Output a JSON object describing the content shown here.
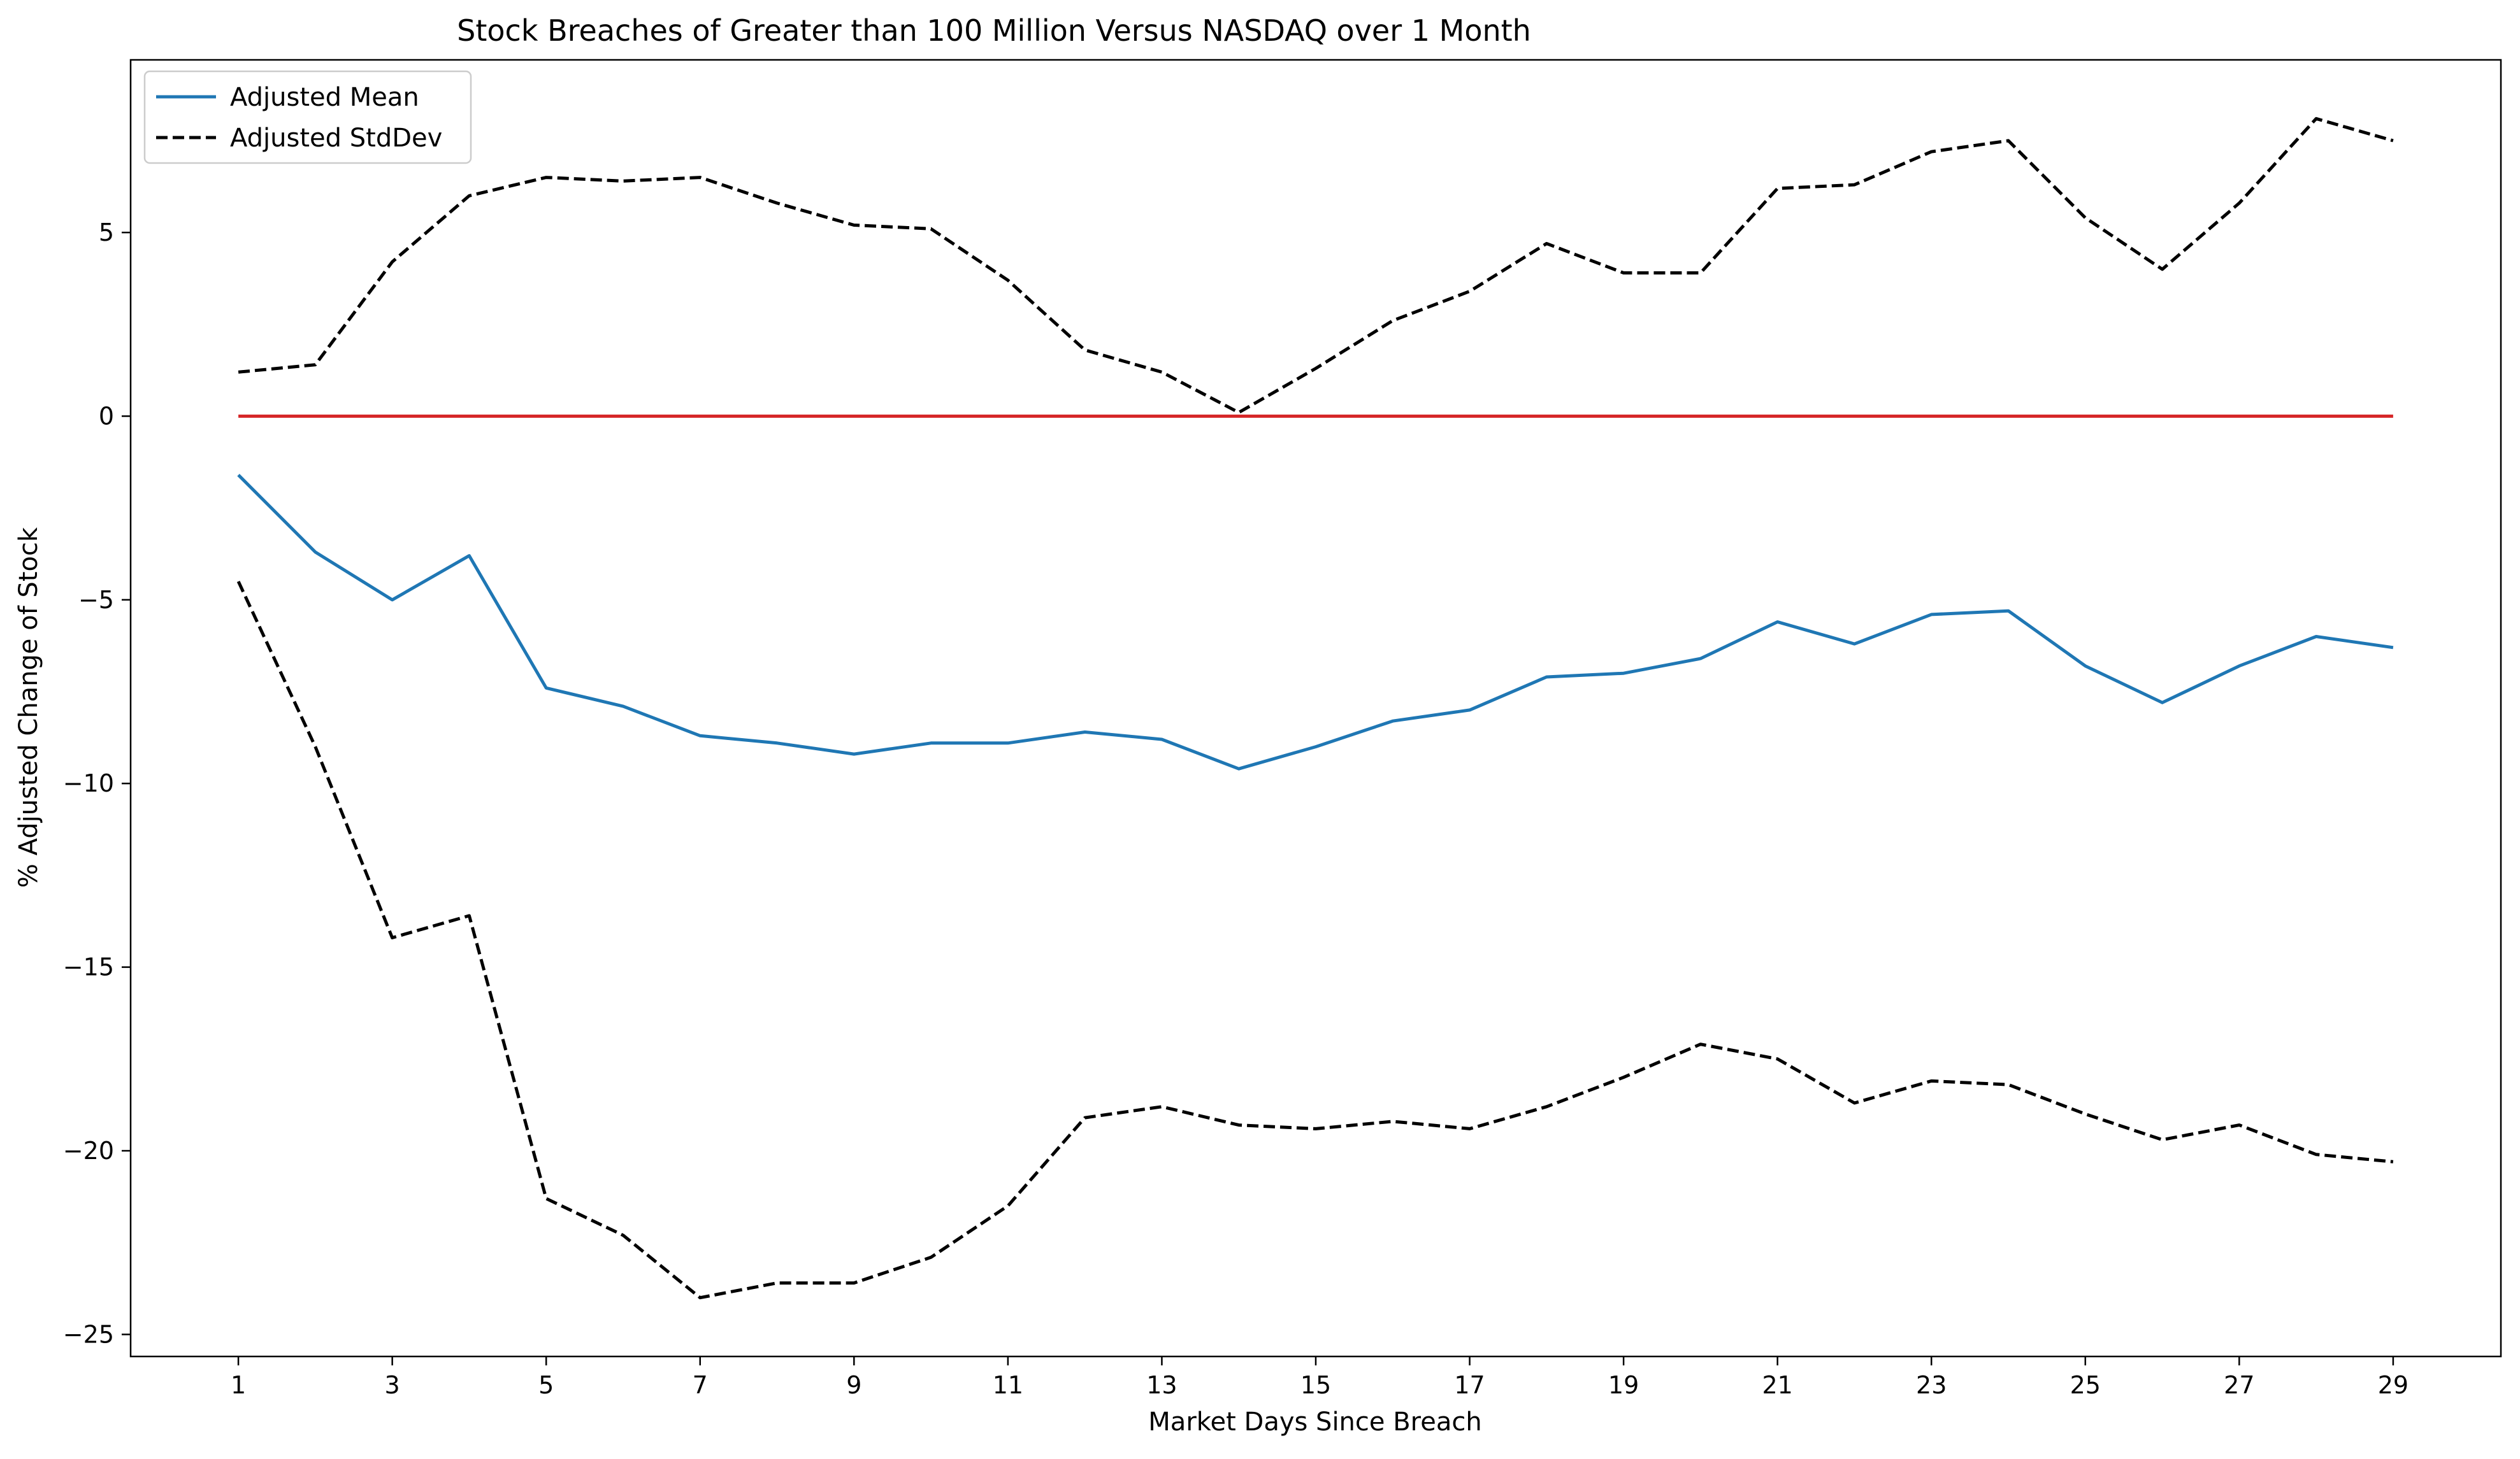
{
  "chart_data": {
    "type": "line",
    "title": "Stock Breaches of Greater than 100 Million Versus NASDAQ over 1 Month",
    "xlabel": "Market Days Since Breach",
    "ylabel": "% Adjusted Change of Stock",
    "x": [
      1,
      2,
      3,
      4,
      5,
      6,
      7,
      8,
      9,
      10,
      11,
      12,
      13,
      14,
      15,
      16,
      17,
      18,
      19,
      20,
      21,
      22,
      23,
      24,
      25,
      26,
      27,
      28,
      29
    ],
    "xticks": [
      1,
      3,
      5,
      7,
      9,
      11,
      13,
      15,
      17,
      19,
      21,
      23,
      25,
      27,
      29
    ],
    "yticks": [
      -25,
      -20,
      -15,
      -10,
      -5,
      0,
      5
    ],
    "xlim": [
      -0.4,
      30.4
    ],
    "ylim": [
      -25.6,
      9.7
    ],
    "grid": false,
    "legend_position": "top-left",
    "series": [
      {
        "name": "Adjusted Mean",
        "color": "#1f77b4",
        "style": "solid",
        "in_legend": true,
        "values": [
          -1.6,
          -3.7,
          -5.0,
          -3.8,
          -7.4,
          -7.9,
          -8.7,
          -8.9,
          -9.2,
          -8.9,
          -8.9,
          -8.6,
          -8.8,
          -9.6,
          -9.0,
          -8.3,
          -8.0,
          -7.1,
          -7.0,
          -6.6,
          -5.6,
          -6.2,
          -5.4,
          -5.3,
          -6.8,
          -7.8,
          -6.8,
          -6.0,
          -6.3
        ]
      },
      {
        "name": "Adjusted StdDev",
        "color": "#000000",
        "style": "dashed",
        "in_legend": true,
        "values": [
          1.2,
          1.4,
          4.2,
          6.0,
          6.5,
          6.4,
          6.5,
          5.8,
          5.2,
          5.1,
          3.7,
          1.8,
          1.2,
          0.1,
          1.3,
          2.6,
          3.4,
          4.7,
          3.9,
          3.9,
          6.2,
          6.3,
          7.2,
          7.5,
          5.4,
          4.0,
          5.8,
          8.1,
          7.5
        ]
      },
      {
        "name": "",
        "color": "#000000",
        "style": "dashed",
        "in_legend": false,
        "values": [
          -4.5,
          -9.0,
          -14.2,
          -13.6,
          -21.3,
          -22.3,
          -24.0,
          -23.6,
          -23.6,
          -22.9,
          -21.5,
          -19.1,
          -18.8,
          -19.3,
          -19.4,
          -19.2,
          -19.4,
          -18.8,
          -18.0,
          -17.1,
          -17.5,
          -18.7,
          -18.1,
          -18.2,
          -19.0,
          -19.7,
          -19.3,
          -20.1,
          -20.3
        ]
      },
      {
        "name": "",
        "color": "#d62728",
        "style": "solid",
        "in_legend": false,
        "values": [
          0,
          0,
          0,
          0,
          0,
          0,
          0,
          0,
          0,
          0,
          0,
          0,
          0,
          0,
          0,
          0,
          0,
          0,
          0,
          0,
          0,
          0,
          0,
          0,
          0,
          0,
          0,
          0,
          0
        ]
      }
    ]
  }
}
